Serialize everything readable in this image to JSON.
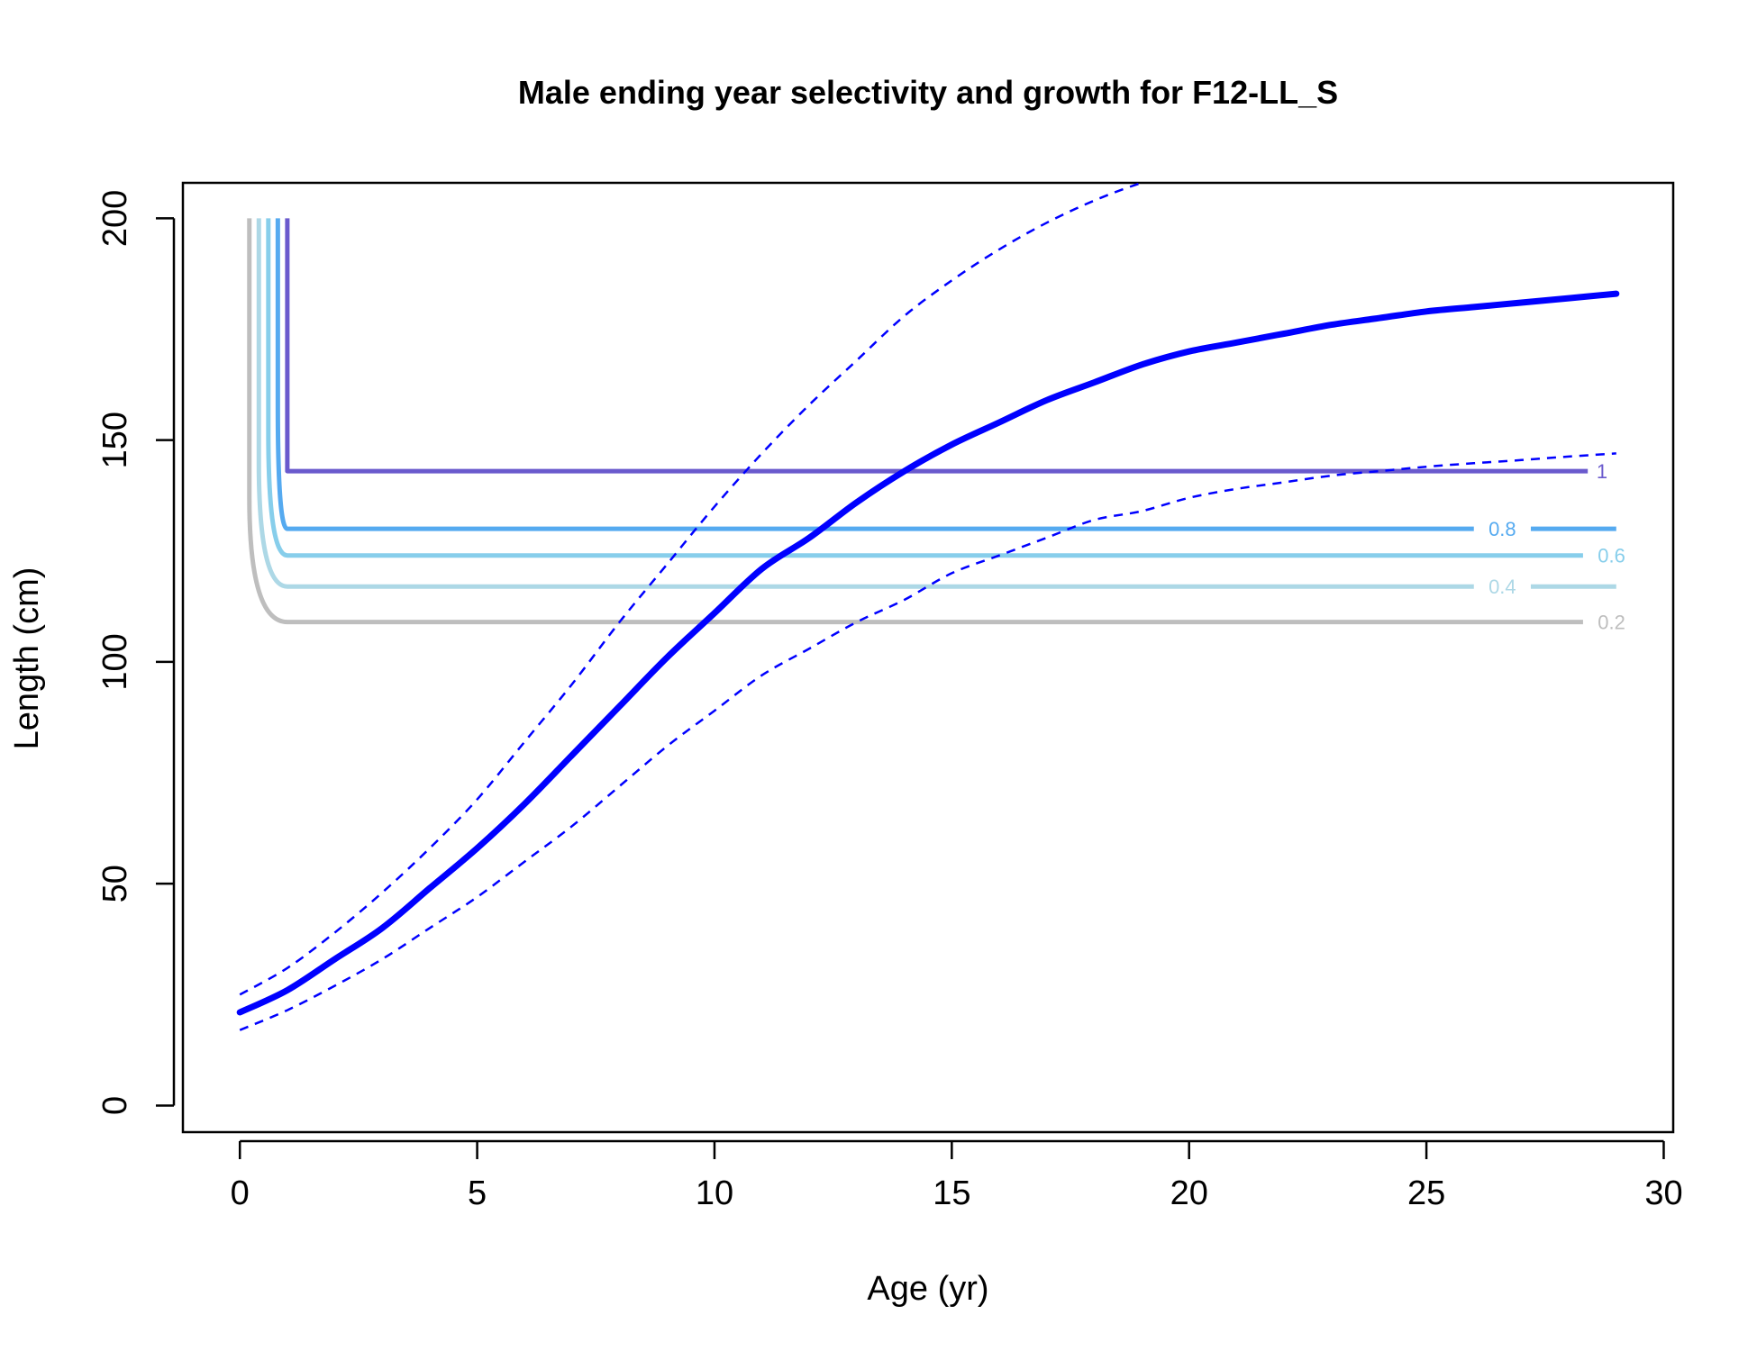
{
  "chart_data": {
    "type": "line",
    "title": "Male ending year selectivity and growth for F12-LL_S",
    "xlabel": "Age (yr)",
    "ylabel": "Length (cm)",
    "xlim": [
      -1.2,
      30.2
    ],
    "ylim": [
      -6,
      208
    ],
    "xticks": [
      0,
      5,
      10,
      15,
      20,
      25,
      30
    ],
    "yticks": [
      0,
      50,
      100,
      150,
      200
    ],
    "x_tick_labels": [
      "0",
      "5",
      "10",
      "15",
      "20",
      "25",
      "30"
    ],
    "y_tick_labels": [
      "0",
      "50",
      "100",
      "150",
      "200"
    ],
    "grid": false,
    "growth": {
      "color": "#0000FF",
      "mean": {
        "x": [
          0,
          1,
          2,
          3,
          4,
          5,
          6,
          7,
          8,
          9,
          10,
          11,
          12,
          13,
          14,
          15,
          16,
          17,
          18,
          19,
          20,
          21,
          22,
          23,
          24,
          25,
          26,
          27,
          28,
          29
        ],
        "y": [
          21,
          26,
          33,
          40,
          49,
          58,
          68,
          79,
          90,
          101,
          111,
          121,
          128,
          136,
          143,
          149,
          154,
          159,
          163,
          167,
          170,
          172,
          174,
          176,
          177.5,
          179,
          180,
          181,
          182,
          183
        ]
      },
      "upper": {
        "x": [
          0,
          1,
          2,
          3,
          4,
          5,
          6,
          7,
          8,
          9,
          10,
          11,
          12,
          13,
          14,
          15,
          16,
          17,
          18,
          19,
          20,
          21,
          21.8
        ],
        "y": [
          25,
          31,
          39,
          48,
          58,
          69,
          82,
          95,
          109,
          122,
          135,
          147,
          158,
          168,
          178,
          186,
          193,
          199,
          204,
          208,
          211,
          214,
          216
        ]
      },
      "lower": {
        "x": [
          0,
          1,
          2,
          3,
          4,
          5,
          6,
          7,
          8,
          9,
          10,
          11,
          12,
          13,
          14,
          15,
          16,
          17,
          18,
          19,
          20,
          21,
          22,
          23,
          24,
          25,
          26,
          27,
          28,
          29
        ],
        "y": [
          17,
          21.5,
          27,
          33,
          40,
          47,
          55,
          63,
          72,
          81,
          89,
          97,
          103,
          109,
          114,
          120,
          124,
          128,
          132,
          134,
          137,
          139,
          140.5,
          142,
          143,
          144,
          144.8,
          145.5,
          146.3,
          147
        ]
      }
    },
    "selectivity_contours": [
      {
        "level": 0.2,
        "label": "0.2",
        "color": "#BEBEBE",
        "x_start": 0.2,
        "x_corner": 1.0,
        "x_end": 28.3,
        "y_corner": 109,
        "y_top": 200,
        "label_x": 28.9,
        "line_resume_x": null
      },
      {
        "level": 0.4,
        "label": "0.4",
        "color": "#ADD8E6",
        "x_start": 0.4,
        "x_corner": 1.0,
        "x_end": 26.0,
        "y_corner": 117,
        "y_top": 200,
        "label_x": 26.6,
        "line_resume_x": 27.2
      },
      {
        "level": 0.6,
        "label": "0.6",
        "color": "#87CEEB",
        "x_start": 0.6,
        "x_corner": 1.0,
        "x_end": 28.3,
        "y_corner": 124,
        "y_top": 200,
        "label_x": 28.9,
        "line_resume_x": null
      },
      {
        "level": 0.8,
        "label": "0.8",
        "color": "#55AAF0",
        "x_start": 0.8,
        "x_corner": 1.0,
        "x_end": 26.0,
        "y_corner": 130,
        "y_top": 200,
        "label_x": 26.6,
        "line_resume_x": 27.2
      },
      {
        "level": 1,
        "label": "1",
        "color": "#6A5ACD",
        "x_start": 1.0,
        "x_corner": 1.0,
        "x_end": 28.4,
        "y_corner": 143,
        "y_top": 200,
        "label_x": 28.7,
        "line_resume_x": null
      }
    ]
  }
}
